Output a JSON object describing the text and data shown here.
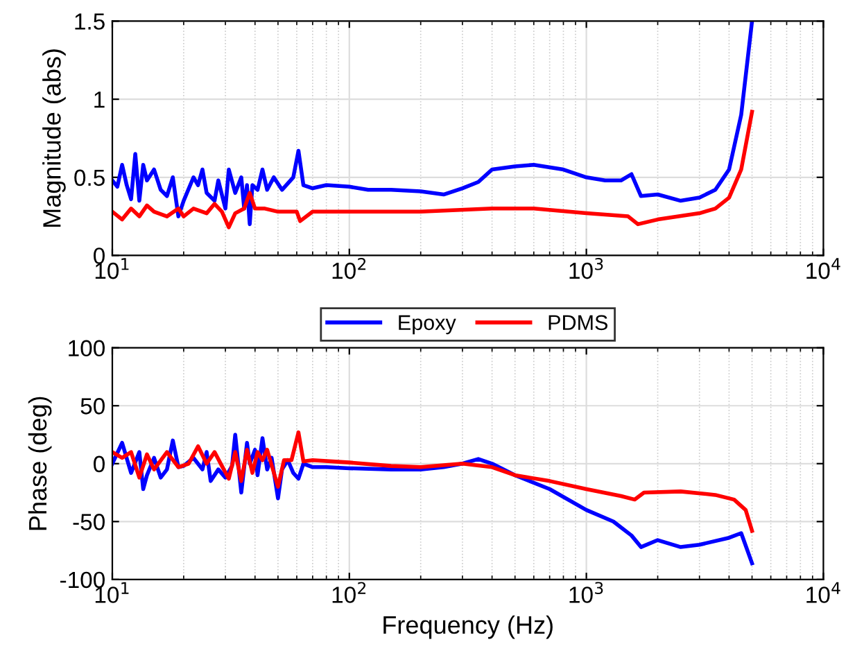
{
  "chart_data": [
    {
      "type": "line",
      "ylabel": "Magnitude (abs)",
      "log": "x",
      "xlim": [
        10,
        10000
      ],
      "ylim": [
        0,
        1.5
      ],
      "xticks": [
        {
          "value": 10,
          "label": "10$^{1}$"
        },
        {
          "value": 100,
          "label": "10$^{2}$"
        },
        {
          "value": 1000,
          "label": "10$^{3}$"
        },
        {
          "value": 10000,
          "label": "10$^{4}$"
        }
      ],
      "yticks": [
        0,
        0.5,
        1,
        1.5
      ],
      "grid": true,
      "legend": "bottom",
      "marker": "none",
      "line_style": "solid",
      "series": [
        {
          "name": "Epoxy",
          "color": "#0000ff",
          "x": [
            10,
            10.5,
            11,
            11.5,
            12,
            12.5,
            13,
            13.5,
            14,
            15,
            16,
            17,
            18,
            19,
            20,
            22,
            23,
            24,
            25,
            27,
            28,
            30,
            31,
            33,
            35,
            36,
            37,
            38,
            39,
            41,
            43,
            45,
            48,
            52,
            58,
            61,
            64,
            70,
            80,
            100,
            120,
            150,
            200,
            250,
            300,
            350,
            400,
            500,
            600,
            800,
            1000,
            1200,
            1400,
            1550,
            1700,
            2000,
            2500,
            3000,
            3500,
            4000,
            4500,
            5000
          ],
          "values": [
            0.48,
            0.44,
            0.58,
            0.45,
            0.36,
            0.65,
            0.35,
            0.58,
            0.48,
            0.55,
            0.42,
            0.38,
            0.5,
            0.25,
            0.35,
            0.5,
            0.45,
            0.55,
            0.4,
            0.35,
            0.48,
            0.3,
            0.55,
            0.4,
            0.5,
            0.3,
            0.45,
            0.2,
            0.45,
            0.42,
            0.55,
            0.42,
            0.5,
            0.42,
            0.5,
            0.67,
            0.45,
            0.43,
            0.45,
            0.44,
            0.42,
            0.42,
            0.41,
            0.39,
            0.43,
            0.47,
            0.55,
            0.57,
            0.58,
            0.55,
            0.5,
            0.48,
            0.48,
            0.52,
            0.38,
            0.39,
            0.35,
            0.37,
            0.42,
            0.55,
            0.9,
            1.5
          ]
        },
        {
          "name": "PDMS",
          "color": "#ff0000",
          "x": [
            10,
            11,
            12,
            13,
            14,
            15,
            17,
            19,
            20,
            22,
            25,
            27,
            29,
            31,
            33,
            36,
            38,
            40,
            44,
            50,
            60,
            62,
            70,
            100,
            200,
            400,
            600,
            1000,
            1500,
            1650,
            2000,
            3000,
            3500,
            4000,
            4500,
            5000
          ],
          "values": [
            0.28,
            0.23,
            0.3,
            0.25,
            0.32,
            0.28,
            0.25,
            0.3,
            0.25,
            0.3,
            0.27,
            0.33,
            0.28,
            0.18,
            0.27,
            0.3,
            0.4,
            0.3,
            0.3,
            0.28,
            0.28,
            0.22,
            0.28,
            0.28,
            0.28,
            0.3,
            0.3,
            0.27,
            0.25,
            0.2,
            0.23,
            0.27,
            0.3,
            0.37,
            0.55,
            0.92
          ]
        }
      ]
    },
    {
      "type": "line",
      "xlabel": "Frequency (Hz)",
      "ylabel": "Phase (deg)",
      "log": "x",
      "xlim": [
        10,
        10000
      ],
      "ylim": [
        -100,
        100
      ],
      "xticks": [
        {
          "value": 10,
          "label": "10$^{1}$"
        },
        {
          "value": 100,
          "label": "10$^{2}$"
        },
        {
          "value": 1000,
          "label": "10$^{3}$"
        },
        {
          "value": 10000,
          "label": "10$^{4}$"
        }
      ],
      "yticks": [
        -100,
        -50,
        0,
        50,
        100
      ],
      "grid": true,
      "marker": "none",
      "line_style": "solid",
      "series": [
        {
          "color": "#0000ff",
          "x": [
            10,
            11,
            12,
            13,
            13.5,
            14,
            15,
            16,
            17,
            18,
            19,
            20,
            22,
            24,
            25,
            26,
            28,
            30,
            32,
            33,
            35,
            37,
            38,
            40,
            41,
            43,
            45,
            47,
            50,
            52,
            55,
            58,
            61,
            64,
            70,
            80,
            100,
            150,
            200,
            250,
            300,
            350,
            400,
            500,
            700,
            1000,
            1300,
            1550,
            1700,
            2000,
            2500,
            3000,
            4000,
            4500,
            5000
          ],
          "values": [
            0,
            18,
            -8,
            10,
            -22,
            -10,
            5,
            -12,
            -5,
            20,
            -3,
            -2,
            5,
            -5,
            10,
            -15,
            -5,
            -12,
            -2,
            25,
            -25,
            18,
            0,
            12,
            -10,
            22,
            -5,
            5,
            -30,
            -5,
            3,
            -8,
            -13,
            0,
            -3,
            -3,
            -4,
            -5,
            -5,
            -3,
            0,
            4,
            0,
            -10,
            -22,
            -40,
            -50,
            -62,
            -72,
            -66,
            -72,
            -70,
            -64,
            -60,
            -86
          ]
        },
        {
          "color": "#ff0000",
          "x": [
            10,
            11,
            12,
            13,
            14,
            15,
            17,
            19,
            21,
            23,
            25,
            27,
            29,
            31,
            33,
            35,
            37,
            39,
            41,
            43,
            45,
            50,
            53,
            57,
            61,
            64,
            70,
            100,
            150,
            200,
            300,
            400,
            500,
            700,
            1000,
            1400,
            1600,
            1750,
            2500,
            3500,
            4200,
            4700,
            5000
          ],
          "values": [
            10,
            5,
            10,
            -12,
            8,
            -5,
            10,
            -3,
            0,
            15,
            0,
            10,
            -2,
            -13,
            10,
            -15,
            12,
            -8,
            10,
            3,
            12,
            -20,
            3,
            3,
            27,
            2,
            3,
            1,
            -2,
            -3,
            0,
            -3,
            -10,
            -15,
            -22,
            -28,
            -31,
            -25,
            -24,
            -27,
            -31,
            -40,
            -58
          ]
        }
      ]
    }
  ]
}
